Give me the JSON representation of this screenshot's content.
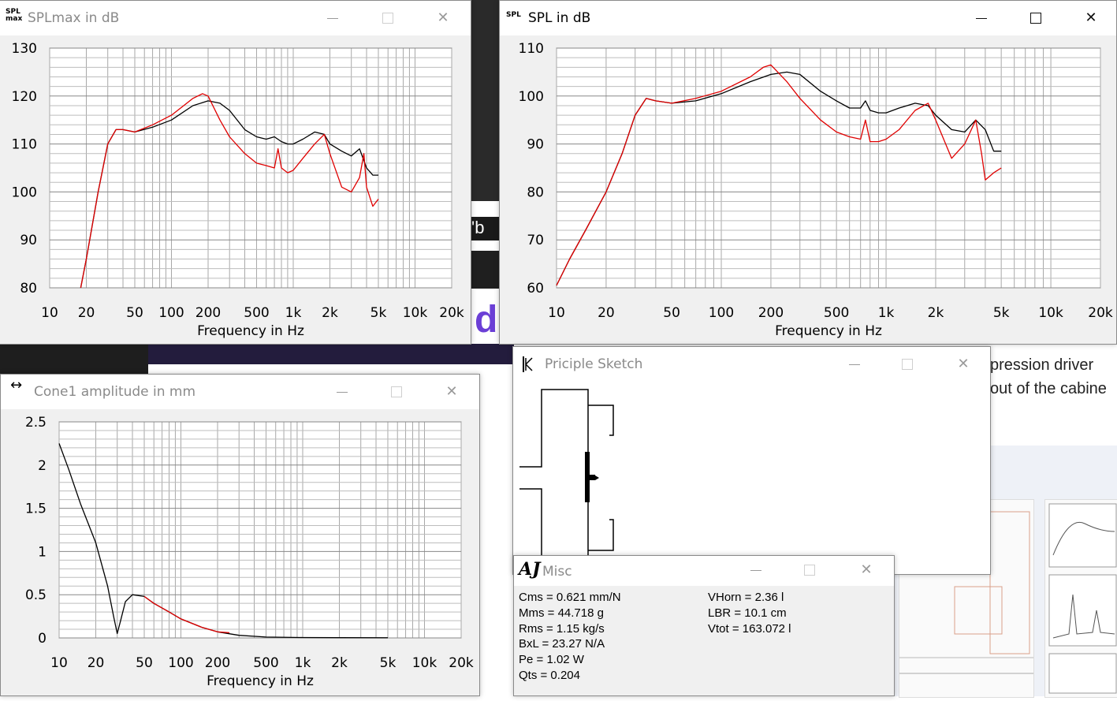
{
  "background": {
    "text_a": "pression driver",
    "text_b": "out of the cabine",
    "fragment": "d",
    "fragment2": "'b"
  },
  "windows": {
    "splmax": {
      "icon": "SPL\nmax",
      "title": "SPLmax in dB",
      "xlabel": "Frequency in Hz",
      "yticks": [
        "130",
        "120",
        "110",
        "100",
        "90",
        "80"
      ],
      "xticks": [
        "10",
        "20",
        "50",
        "100",
        "200",
        "500",
        "1k",
        "2k",
        "5k",
        "10k",
        "20k"
      ]
    },
    "spl": {
      "icon": "SPL",
      "title": "SPL in dB",
      "xlabel": "Frequency in Hz",
      "yticks": [
        "110",
        "100",
        "90",
        "80",
        "70",
        "60"
      ],
      "xticks": [
        "10",
        "20",
        "50",
        "100",
        "200",
        "500",
        "1k",
        "2k",
        "5k",
        "10k",
        "20k"
      ]
    },
    "cone": {
      "icon": "↔",
      "title": "Cone1 amplitude in mm",
      "xlabel": "Frequency in Hz",
      "yticks": [
        "2.5",
        "2",
        "1.5",
        "1",
        "0.5",
        "0"
      ],
      "xticks": [
        "10",
        "20",
        "50",
        "100",
        "200",
        "500",
        "1k",
        "2k",
        "5k",
        "10k",
        "20k"
      ]
    },
    "sketch": {
      "title": "Priciple Sketch"
    },
    "misc": {
      "title": "Misc",
      "left": [
        "Cms = 0.621 mm/N",
        "Mms = 44.718 g",
        "Rms = 1.15 kg/s",
        "BxL = 23.27 N/A",
        "Pe = 1.02 W",
        "Qts = 0.204"
      ],
      "right": [
        "VHorn = 2.36 l",
        "LBR = 10.1 cm",
        "Vtot = 163.072 l"
      ]
    }
  },
  "chart_data": [
    {
      "type": "line",
      "title": "SPLmax in dB",
      "xlabel": "Frequency in Hz",
      "ylabel": "",
      "xscale": "log",
      "xlim": [
        10,
        20000
      ],
      "ylim": [
        80,
        130
      ],
      "grid": true,
      "series": [
        {
          "color": "#000000",
          "x": [
            18,
            20,
            25,
            30,
            35,
            40,
            50,
            70,
            100,
            150,
            200,
            250,
            300,
            400,
            500,
            600,
            700,
            800,
            900,
            1000,
            1200,
            1500,
            1800,
            2000,
            2500,
            3000,
            3500,
            4000,
            4500,
            5000
          ],
          "y": [
            80,
            86,
            100,
            110,
            113,
            113,
            112.5,
            113.5,
            115,
            118,
            119,
            118.5,
            117,
            113,
            111.5,
            111,
            111.5,
            110.5,
            110,
            110,
            111,
            112.5,
            112,
            110,
            108.5,
            107.5,
            109,
            105,
            103.5,
            103.5
          ]
        },
        {
          "color": "#e00000",
          "x": [
            18,
            20,
            25,
            30,
            35,
            40,
            50,
            70,
            100,
            150,
            180,
            200,
            250,
            300,
            400,
            500,
            600,
            700,
            750,
            800,
            900,
            1000,
            1200,
            1500,
            1800,
            2000,
            2500,
            3000,
            3500,
            3800,
            4000,
            4500,
            5000
          ],
          "y": [
            80,
            86,
            100,
            110,
            113,
            113,
            112.5,
            114,
            116,
            119.5,
            120.5,
            120,
            115,
            111.5,
            108,
            106,
            105.5,
            105,
            109,
            105,
            104,
            104.5,
            107,
            110,
            112,
            108,
            101,
            100,
            103,
            108,
            101,
            97,
            98.5
          ]
        }
      ]
    },
    {
      "type": "line",
      "title": "SPL in dB",
      "xlabel": "Frequency in Hz",
      "ylabel": "",
      "xscale": "log",
      "xlim": [
        10,
        20000
      ],
      "ylim": [
        60,
        110
      ],
      "grid": true,
      "series": [
        {
          "color": "#000000",
          "x": [
            10,
            12,
            15,
            20,
            25,
            30,
            35,
            40,
            50,
            70,
            100,
            150,
            200,
            250,
            300,
            400,
            500,
            600,
            700,
            750,
            800,
            900,
            1000,
            1200,
            1500,
            1800,
            2000,
            2500,
            3000,
            3500,
            4000,
            4500,
            5000
          ],
          "y": [
            60.5,
            66,
            72,
            80,
            88,
            96,
            99.5,
            99,
            98.5,
            99,
            100.5,
            103,
            104.5,
            105,
            104.5,
            101,
            99,
            97.5,
            97.5,
            99,
            97,
            96.5,
            96.5,
            97.5,
            98.5,
            98,
            96,
            93,
            92.5,
            95,
            93,
            88.5,
            88.5
          ]
        },
        {
          "color": "#e00000",
          "x": [
            10,
            12,
            15,
            20,
            25,
            30,
            35,
            40,
            50,
            70,
            100,
            150,
            180,
            200,
            250,
            300,
            400,
            500,
            600,
            700,
            750,
            800,
            900,
            1000,
            1200,
            1500,
            1800,
            2000,
            2500,
            3000,
            3500,
            3800,
            4000,
            4500,
            5000
          ],
          "y": [
            60.5,
            66,
            72,
            80,
            88,
            96,
            99.5,
            99,
            98.5,
            99.5,
            101,
            104,
            106,
            106.5,
            103,
            99.5,
            95,
            92.5,
            91.5,
            91,
            95,
            90.5,
            90.5,
            91,
            93,
            97,
            98.5,
            95,
            87,
            90,
            95,
            88,
            82.5,
            84,
            85
          ]
        }
      ]
    },
    {
      "type": "line",
      "title": "Cone1 amplitude in mm",
      "xlabel": "Frequency in Hz",
      "ylabel": "",
      "xscale": "log",
      "xlim": [
        10,
        20000
      ],
      "ylim": [
        0,
        2.5
      ],
      "grid": true,
      "series": [
        {
          "color": "#000000",
          "x": [
            10,
            12,
            15,
            20,
            25,
            28,
            30,
            32,
            35,
            40,
            50,
            60,
            80,
            100,
            150,
            200,
            300,
            500,
            1000,
            2000,
            5000
          ],
          "y": [
            2.25,
            1.95,
            1.55,
            1.1,
            0.6,
            0.25,
            0.05,
            0.2,
            0.42,
            0.5,
            0.48,
            0.4,
            0.3,
            0.22,
            0.12,
            0.07,
            0.03,
            0.01,
            0.005,
            0.003,
            0.002
          ]
        },
        {
          "color": "#e00000",
          "x": [
            50,
            60,
            80,
            100,
            150,
            200,
            250
          ],
          "y": [
            0.48,
            0.4,
            0.3,
            0.22,
            0.12,
            0.07,
            0.06
          ]
        }
      ]
    }
  ]
}
